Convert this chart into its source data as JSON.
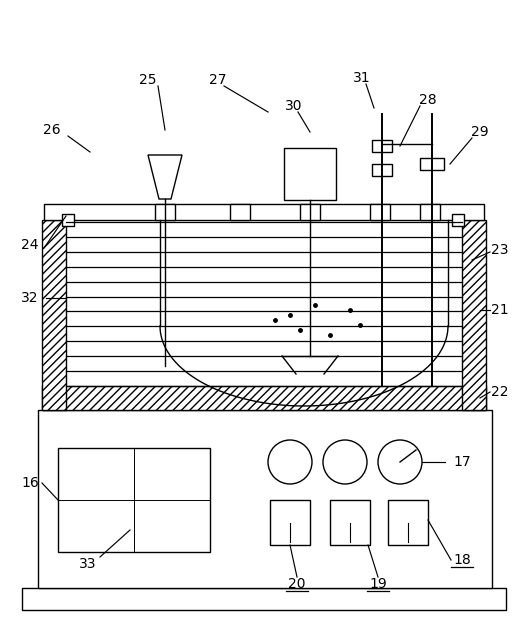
{
  "bg_color": "#ffffff",
  "line_color": "#000000",
  "lw": 1.0,
  "fig_w": 5.28,
  "fig_h": 6.4,
  "dpi": 100,
  "label_fontsize": 10
}
